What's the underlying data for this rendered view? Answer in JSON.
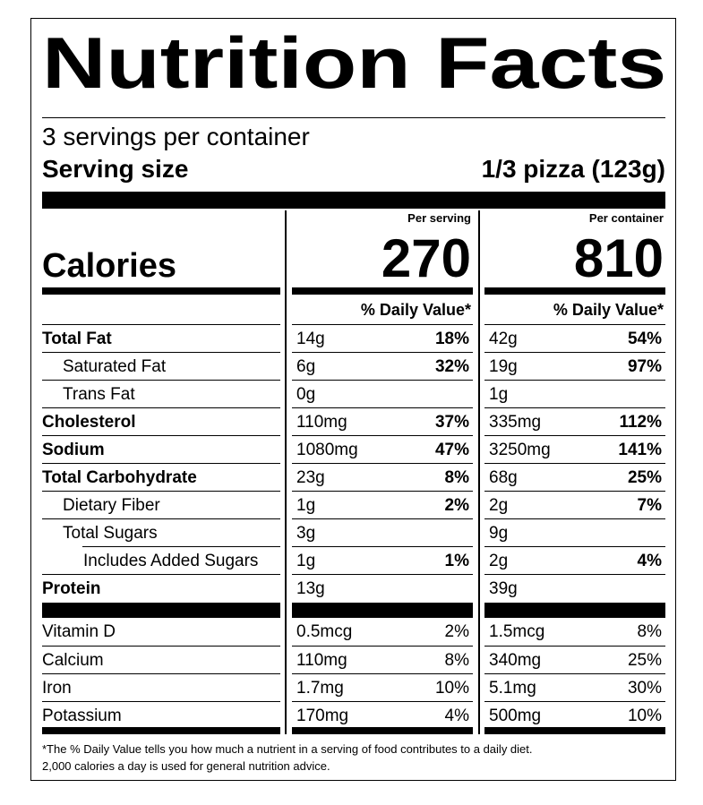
{
  "title": "Nutrition Facts",
  "servings_per_container": "3 servings per container",
  "serving_size": {
    "label": "Serving size",
    "value": "1/3 pizza (123g)"
  },
  "calories": {
    "label": "Calories",
    "per_serving": {
      "header": "Per serving",
      "value": "270"
    },
    "per_container": {
      "header": "Per container",
      "value": "810"
    }
  },
  "daily_value_header": "% Daily Value*",
  "nutrients": [
    {
      "name": "Total Fat",
      "per_serving": {
        "amount": "14g",
        "dv": "18%"
      },
      "per_container": {
        "amount": "42g",
        "dv": "54%"
      }
    },
    {
      "name": "Saturated Fat",
      "per_serving": {
        "amount": "6g",
        "dv": "32%"
      },
      "per_container": {
        "amount": "19g",
        "dv": "97%"
      }
    },
    {
      "name": "Trans Fat",
      "per_serving": {
        "amount": "0g"
      },
      "per_container": {
        "amount": "1g"
      }
    },
    {
      "name": "Cholesterol",
      "per_serving": {
        "amount": "110mg",
        "dv": "37%"
      },
      "per_container": {
        "amount": "335mg",
        "dv": "112%"
      }
    },
    {
      "name": "Sodium",
      "per_serving": {
        "amount": "1080mg",
        "dv": "47%"
      },
      "per_container": {
        "amount": "3250mg",
        "dv": "141%"
      }
    },
    {
      "name": "Total Carbohydrate",
      "per_serving": {
        "amount": "23g",
        "dv": "8%"
      },
      "per_container": {
        "amount": "68g",
        "dv": "25%"
      }
    },
    {
      "name": "Dietary Fiber",
      "per_serving": {
        "amount": "1g",
        "dv": "2%"
      },
      "per_container": {
        "amount": "2g",
        "dv": "7%"
      }
    },
    {
      "name": "Total Sugars",
      "per_serving": {
        "amount": "3g"
      },
      "per_container": {
        "amount": "9g"
      }
    },
    {
      "name": "Includes Added Sugars",
      "per_serving": {
        "amount": "1g",
        "dv": "1%"
      },
      "per_container": {
        "amount": "2g",
        "dv": "4%"
      }
    },
    {
      "name": "Protein",
      "per_serving": {
        "amount": "13g"
      },
      "per_container": {
        "amount": "39g"
      }
    }
  ],
  "vitamins_minerals": [
    {
      "name": "Vitamin D",
      "per_serving": {
        "amount": "0.5mcg",
        "dv": "2%"
      },
      "per_container": {
        "amount": "1.5mcg",
        "dv": "8%"
      }
    },
    {
      "name": "Calcium",
      "per_serving": {
        "amount": "110mg",
        "dv": "8%"
      },
      "per_container": {
        "amount": "340mg",
        "dv": "25%"
      }
    },
    {
      "name": "Iron",
      "per_serving": {
        "amount": "1.7mg",
        "dv": "10%"
      },
      "per_container": {
        "amount": "5.1mg",
        "dv": "30%"
      }
    },
    {
      "name": "Potassium",
      "per_serving": {
        "amount": "170mg",
        "dv": "4%"
      },
      "per_container": {
        "amount": "500mg",
        "dv": "10%"
      }
    }
  ],
  "footnote": [
    "*The % Daily Value tells you how much a nutrient in a serving of food contributes to a daily diet.",
    "2,000 calories a day is used for general nutrition advice."
  ]
}
